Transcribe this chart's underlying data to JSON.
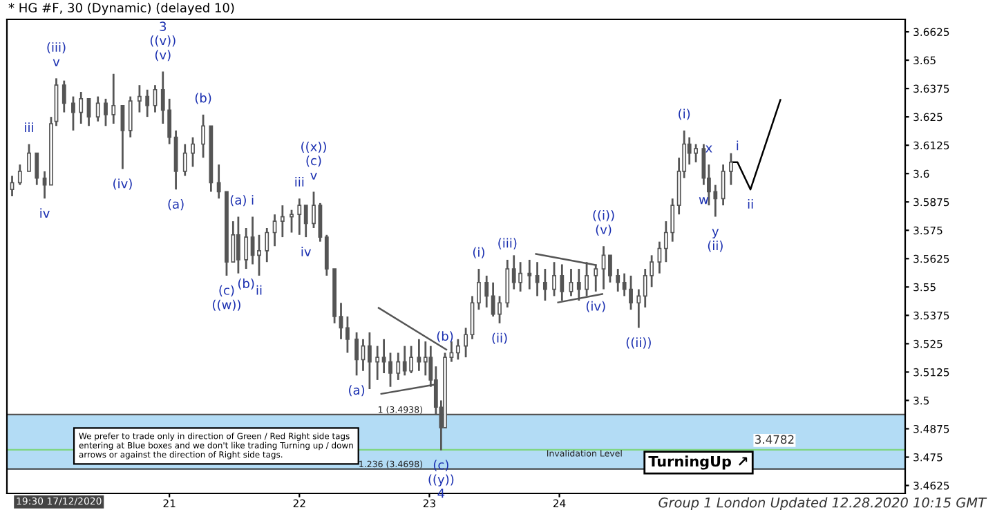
{
  "chart_data": {
    "type": "candlestick",
    "title": "* HG #F, 30 (Dynamic) (delayed 10)",
    "xlim": [
      19.75,
      26.66
    ],
    "xticks": [
      21,
      22,
      23,
      24
    ],
    "ylim": [
      3.459,
      3.668
    ],
    "yticks": [
      3.4625,
      3.475,
      3.4875,
      3.5,
      3.5125,
      3.525,
      3.5375,
      3.55,
      3.5625,
      3.575,
      3.5875,
      3.6,
      3.6125,
      3.625,
      3.6375,
      3.65,
      3.6625
    ],
    "grid": false,
    "legend": false,
    "series": [
      {
        "type": "candlestick",
        "color": "#555555",
        "x": [
          19.79,
          19.85,
          19.92,
          19.98,
          20.04,
          20.09,
          20.13,
          20.19,
          20.26,
          20.32,
          20.38,
          20.45,
          20.51,
          20.57,
          20.64,
          20.7,
          20.77,
          20.83,
          20.89,
          20.95,
          21.0,
          21.05,
          21.12,
          21.18,
          21.26,
          21.32,
          21.38,
          21.44,
          21.49,
          21.53,
          21.59,
          21.64,
          21.69,
          21.75,
          21.81,
          21.87,
          21.94,
          22.0,
          22.05,
          22.11,
          22.16,
          22.21,
          22.27,
          22.32,
          22.37,
          22.44,
          22.49,
          22.54,
          22.6,
          22.65,
          22.7,
          22.76,
          22.81,
          22.86,
          22.92,
          22.97,
          23.01,
          23.05,
          23.09,
          23.12,
          23.17,
          23.22,
          23.28,
          23.33,
          23.38,
          23.44,
          23.49,
          23.54,
          23.6,
          23.65,
          23.7,
          23.77,
          23.83,
          23.89,
          23.96,
          24.02,
          24.09,
          24.15,
          24.21,
          24.28,
          24.34,
          24.39,
          24.45,
          24.5,
          24.55,
          24.61,
          24.66,
          24.71,
          24.77,
          24.82,
          24.87,
          24.92,
          24.96,
          25.0,
          25.05,
          25.11,
          25.15,
          25.2,
          25.26,
          25.32
        ],
        "ohlc": [
          [
            3.593,
            3.599,
            3.59,
            3.596
          ],
          [
            3.596,
            3.604,
            3.595,
            3.601
          ],
          [
            3.601,
            3.613,
            3.601,
            3.609
          ],
          [
            3.609,
            3.609,
            3.595,
            3.598
          ],
          [
            3.598,
            3.601,
            3.589,
            3.595
          ],
          [
            3.595,
            3.625,
            3.595,
            3.622
          ],
          [
            3.623,
            3.642,
            3.621,
            3.639
          ],
          [
            3.639,
            3.641,
            3.627,
            3.631
          ],
          [
            3.631,
            3.634,
            3.619,
            3.627
          ],
          [
            3.627,
            3.636,
            3.622,
            3.633
          ],
          [
            3.633,
            3.633,
            3.621,
            3.625
          ],
          [
            3.625,
            3.634,
            3.623,
            3.631
          ],
          [
            3.631,
            3.633,
            3.621,
            3.626
          ],
          [
            3.626,
            3.644,
            3.622,
            3.63
          ],
          [
            3.63,
            3.63,
            3.602,
            3.619
          ],
          [
            3.619,
            3.634,
            3.616,
            3.632
          ],
          [
            3.632,
            3.639,
            3.627,
            3.634
          ],
          [
            3.634,
            3.637,
            3.625,
            3.63
          ],
          [
            3.63,
            3.639,
            3.627,
            3.637
          ],
          [
            3.637,
            3.645,
            3.622,
            3.628
          ],
          [
            3.628,
            3.633,
            3.613,
            3.616
          ],
          [
            3.616,
            3.619,
            3.593,
            3.601
          ],
          [
            3.601,
            3.613,
            3.599,
            3.609
          ],
          [
            3.609,
            3.616,
            3.603,
            3.613
          ],
          [
            3.613,
            3.626,
            3.607,
            3.621
          ],
          [
            3.621,
            3.621,
            3.592,
            3.596
          ],
          [
            3.596,
            3.604,
            3.589,
            3.592
          ],
          [
            3.592,
            3.592,
            3.555,
            3.561
          ],
          [
            3.561,
            3.579,
            3.561,
            3.573
          ],
          [
            3.573,
            3.581,
            3.556,
            3.562
          ],
          [
            3.562,
            3.576,
            3.558,
            3.572
          ],
          [
            3.572,
            3.581,
            3.56,
            3.564
          ],
          [
            3.564,
            3.573,
            3.555,
            3.566
          ],
          [
            3.566,
            3.576,
            3.561,
            3.574
          ],
          [
            3.574,
            3.582,
            3.568,
            3.579
          ],
          [
            3.579,
            3.586,
            3.572,
            3.581
          ],
          [
            3.581,
            3.584,
            3.574,
            3.582
          ],
          [
            3.582,
            3.589,
            3.573,
            3.586
          ],
          [
            3.586,
            3.586,
            3.572,
            3.578
          ],
          [
            3.578,
            3.592,
            3.576,
            3.586
          ],
          [
            3.586,
            3.587,
            3.57,
            3.572
          ],
          [
            3.572,
            3.573,
            3.555,
            3.558
          ],
          [
            3.558,
            3.558,
            3.534,
            3.537
          ],
          [
            3.537,
            3.543,
            3.527,
            3.532
          ],
          [
            3.532,
            3.537,
            3.521,
            3.527
          ],
          [
            3.527,
            3.53,
            3.511,
            3.518
          ],
          [
            3.518,
            3.527,
            3.513,
            3.524
          ],
          [
            3.524,
            3.53,
            3.505,
            3.517
          ],
          [
            3.517,
            3.524,
            3.509,
            3.519
          ],
          [
            3.519,
            3.527,
            3.512,
            3.517
          ],
          [
            3.517,
            3.521,
            3.506,
            3.512
          ],
          [
            3.512,
            3.521,
            3.509,
            3.517
          ],
          [
            3.517,
            3.524,
            3.511,
            3.513
          ],
          [
            3.513,
            3.524,
            3.512,
            3.519
          ],
          [
            3.519,
            3.527,
            3.513,
            3.517
          ],
          [
            3.517,
            3.526,
            3.511,
            3.519
          ],
          [
            3.519,
            3.524,
            3.506,
            3.509
          ],
          [
            3.509,
            3.515,
            3.494,
            3.497
          ],
          [
            3.497,
            3.5,
            3.478,
            3.488
          ],
          [
            3.488,
            3.521,
            3.488,
            3.519
          ],
          [
            3.519,
            3.526,
            3.517,
            3.521
          ],
          [
            3.521,
            3.527,
            3.518,
            3.524
          ],
          [
            3.524,
            3.532,
            3.519,
            3.529
          ],
          [
            3.529,
            3.546,
            3.527,
            3.543
          ],
          [
            3.543,
            3.558,
            3.54,
            3.552
          ],
          [
            3.552,
            3.555,
            3.541,
            3.546
          ],
          [
            3.546,
            3.552,
            3.537,
            3.538
          ],
          [
            3.538,
            3.546,
            3.534,
            3.543
          ],
          [
            3.543,
            3.562,
            3.541,
            3.558
          ],
          [
            3.558,
            3.564,
            3.549,
            3.552
          ],
          [
            3.552,
            3.561,
            3.548,
            3.556
          ],
          [
            3.556,
            3.562,
            3.549,
            3.555
          ],
          [
            3.555,
            3.561,
            3.546,
            3.552
          ],
          [
            3.552,
            3.558,
            3.544,
            3.549
          ],
          [
            3.549,
            3.561,
            3.546,
            3.555
          ],
          [
            3.555,
            3.56,
            3.544,
            3.548
          ],
          [
            3.548,
            3.558,
            3.546,
            3.552
          ],
          [
            3.552,
            3.558,
            3.544,
            3.549
          ],
          [
            3.549,
            3.561,
            3.546,
            3.555
          ],
          [
            3.555,
            3.56,
            3.548,
            3.558
          ],
          [
            3.558,
            3.568,
            3.549,
            3.564
          ],
          [
            3.564,
            3.564,
            3.552,
            3.555
          ],
          [
            3.555,
            3.558,
            3.548,
            3.552
          ],
          [
            3.552,
            3.556,
            3.546,
            3.549
          ],
          [
            3.549,
            3.555,
            3.54,
            3.543
          ],
          [
            3.543,
            3.549,
            3.532,
            3.546
          ],
          [
            3.546,
            3.558,
            3.541,
            3.555
          ],
          [
            3.555,
            3.564,
            3.55,
            3.561
          ],
          [
            3.561,
            3.57,
            3.556,
            3.567
          ],
          [
            3.567,
            3.579,
            3.561,
            3.574
          ],
          [
            3.574,
            3.589,
            3.57,
            3.586
          ],
          [
            3.586,
            3.607,
            3.582,
            3.601
          ],
          [
            3.601,
            3.619,
            3.598,
            3.613
          ],
          [
            3.613,
            3.616,
            3.604,
            3.609
          ],
          [
            3.609,
            3.613,
            3.605,
            3.611
          ],
          [
            3.611,
            3.613,
            3.595,
            3.598
          ],
          [
            3.598,
            3.604,
            3.586,
            3.592
          ],
          [
            3.592,
            3.595,
            3.581,
            3.589
          ],
          [
            3.589,
            3.604,
            3.586,
            3.601
          ],
          [
            3.601,
            3.609,
            3.595,
            3.605
          ]
        ]
      },
      {
        "type": "line",
        "color": "#000000",
        "x": [
          25.32,
          25.37,
          25.47,
          25.7
        ],
        "values": [
          3.605,
          3.605,
          3.593,
          3.6325
        ]
      },
      {
        "type": "line",
        "color": "#555555",
        "x": [
          22.61,
          23.13
        ],
        "values": [
          3.5408,
          3.5224
        ]
      },
      {
        "type": "line",
        "color": "#555555",
        "x": [
          22.63,
          23.05
        ],
        "values": [
          3.5029,
          3.5071
        ]
      },
      {
        "type": "line",
        "color": "#555555",
        "x": [
          23.82,
          24.28
        ],
        "values": [
          3.5646,
          3.5597
        ]
      },
      {
        "type": "line",
        "color": "#555555",
        "x": [
          23.99,
          24.33
        ],
        "values": [
          3.5432,
          3.5469
        ]
      }
    ],
    "bands": [
      {
        "axis": "y",
        "from": 3.4698,
        "to": 3.4938,
        "color": "#b3dcf5"
      }
    ],
    "ref_lines": [
      {
        "axis": "y",
        "value": 3.4938,
        "label": "1 (3.4938)",
        "color": "#555555"
      },
      {
        "axis": "y",
        "value": 3.4698,
        "label": "1.236 (3.4698)",
        "color": "#555555"
      },
      {
        "axis": "y",
        "value": 3.4782,
        "label": "Invalidation Level",
        "color": "#7fd67f"
      }
    ],
    "annotations": [
      {
        "text": "iii",
        "x": 19.92,
        "y": 3.613
      },
      {
        "text": "iv",
        "x": 20.04,
        "y": 3.589
      },
      {
        "text": "v",
        "x": 20.13,
        "y": 3.642
      },
      {
        "text": "(iii)",
        "x": 20.13,
        "y": 3.642
      },
      {
        "text": "(iv)",
        "x": 20.64,
        "y": 3.602
      },
      {
        "text": "(v)",
        "x": 20.95,
        "y": 3.645
      },
      {
        "text": "((v))",
        "x": 20.95,
        "y": 3.645
      },
      "3",
      {
        "text": "(a)",
        "x": 21.05,
        "y": 3.593
      },
      {
        "text": "(b)",
        "x": 21.26,
        "y": 3.626
      },
      {
        "text": "(a)",
        "x": 21.53,
        "y": 3.581
      },
      {
        "text": "i",
        "x": 21.64,
        "y": 3.581
      },
      {
        "text": "(c)",
        "x": 21.44,
        "y": 3.555
      },
      {
        "text": "((w))",
        "x": 21.44,
        "y": 3.555
      },
      {
        "text": "(b)",
        "x": 21.59,
        "y": 3.558
      },
      {
        "text": "ii",
        "x": 21.69,
        "y": 3.555
      },
      {
        "text": "iii",
        "x": 22.0,
        "y": 3.589
      },
      {
        "text": "iv",
        "x": 22.05,
        "y": 3.572
      },
      {
        "text": "v",
        "x": 22.11,
        "y": 3.592
      },
      {
        "text": "(c)",
        "x": 22.11,
        "y": 3.592
      },
      "((x))",
      {
        "text": "(a)",
        "x": 22.44,
        "y": 3.511
      },
      {
        "text": "(b)",
        "x": 23.12,
        "y": 3.521
      },
      {
        "text": "(c)",
        "x": 23.09,
        "y": 3.478
      },
      {
        "text": "((y))",
        "x": 23.09,
        "y": 3.478
      },
      "4",
      {
        "text": "(i)",
        "x": 23.38,
        "y": 3.558
      },
      {
        "text": "(ii)",
        "x": 23.54,
        "y": 3.534
      },
      {
        "text": "(iii)",
        "x": 23.6,
        "y": 3.562
      },
      {
        "text": "(v)",
        "x": 24.34,
        "y": 3.568
      },
      {
        "text": "((i))",
        "x": 24.34,
        "y": 3.568
      },
      {
        "text": "(iv)",
        "x": 24.28,
        "y": 3.548
      },
      {
        "text": "((ii))",
        "x": 24.61,
        "y": 3.532
      },
      {
        "text": "(i)",
        "x": 24.96,
        "y": 3.619
      },
      {
        "text": "x",
        "x": 25.15,
        "y": 3.604
      },
      {
        "text": "w",
        "x": 25.11,
        "y": 3.595
      },
      {
        "text": "y",
        "x": 25.2,
        "y": 3.581
      },
      {
        "text": "(ii)",
        "x": 25.2,
        "y": 3.581
      },
      {
        "text": "i",
        "x": 25.37,
        "y": 3.605
      },
      {
        "text": "ii",
        "x": 25.47,
        "y": 3.593
      },
      {
        "text": "3.4782",
        "x": 25.5,
        "y": 3.4782
      },
      "We prefer to trade only in direction of Green / Red Right side tags entering at Blue boxes and we don't like trading Turning up / down arrows or against the direction of Right side tags.",
      "TurningUp ↗",
      "Group 1 London Updated 12.28.2020 10:15 GMT",
      "19:30 17/12/2020"
    ]
  }
}
